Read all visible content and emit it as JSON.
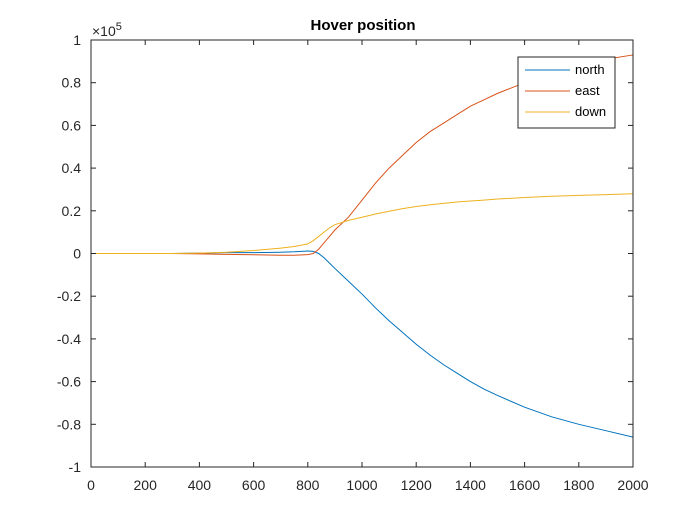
{
  "chart_data": {
    "type": "line",
    "title": "Hover position",
    "xlabel": "",
    "ylabel": "",
    "xlim": [
      0,
      2000
    ],
    "ylim": [
      -1,
      1
    ],
    "xticks": [
      0,
      200,
      400,
      600,
      800,
      1000,
      1200,
      1400,
      1600,
      1800,
      2000
    ],
    "yticks": [
      -1,
      -0.8,
      -0.6,
      -0.4,
      -0.2,
      0,
      0.2,
      0.4,
      0.6,
      0.8,
      1
    ],
    "yexponent_label": "×10",
    "yexponent_power": "5",
    "grid": false,
    "legend_position": "top-right",
    "x": [
      0,
      100,
      200,
      300,
      400,
      500,
      600,
      700,
      750,
      800,
      820,
      840,
      860,
      880,
      900,
      950,
      1000,
      1050,
      1100,
      1150,
      1200,
      1250,
      1300,
      1350,
      1400,
      1450,
      1500,
      1600,
      1700,
      1800,
      1900,
      2000
    ],
    "series": [
      {
        "name": "north",
        "color": "#0072BD",
        "values": [
          0,
          0,
          0,
          0,
          0.002,
          0.004,
          0.004,
          0.006,
          0.008,
          0.012,
          0.01,
          0,
          -0.02,
          -0.045,
          -0.07,
          -0.13,
          -0.19,
          -0.255,
          -0.315,
          -0.37,
          -0.425,
          -0.475,
          -0.52,
          -0.56,
          -0.6,
          -0.635,
          -0.665,
          -0.72,
          -0.765,
          -0.8,
          -0.83,
          -0.86
        ]
      },
      {
        "name": "east",
        "color": "#D95319",
        "values": [
          0,
          0,
          0,
          0,
          -0.002,
          -0.004,
          -0.006,
          -0.008,
          -0.008,
          -0.005,
          0,
          0.02,
          0.05,
          0.08,
          0.11,
          0.17,
          0.25,
          0.33,
          0.4,
          0.46,
          0.52,
          0.57,
          0.61,
          0.65,
          0.69,
          0.72,
          0.75,
          0.8,
          0.85,
          0.88,
          0.91,
          0.93
        ]
      },
      {
        "name": "down",
        "color": "#EDB120",
        "values": [
          0,
          0,
          0,
          0,
          0.002,
          0.006,
          0.014,
          0.025,
          0.033,
          0.045,
          0.06,
          0.08,
          0.1,
          0.12,
          0.135,
          0.155,
          0.17,
          0.185,
          0.198,
          0.21,
          0.22,
          0.228,
          0.235,
          0.241,
          0.246,
          0.25,
          0.255,
          0.262,
          0.268,
          0.272,
          0.276,
          0.28
        ]
      }
    ]
  }
}
